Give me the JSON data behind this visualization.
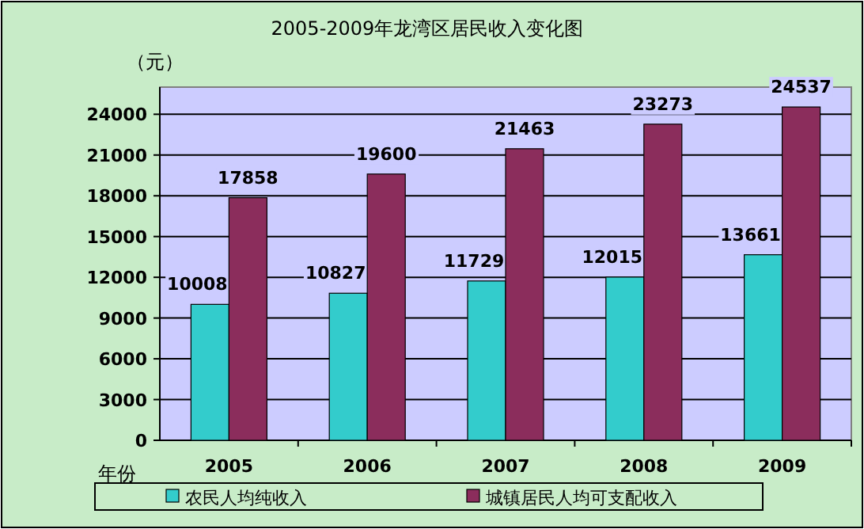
{
  "chart_data": {
    "type": "bar",
    "title": "2005-2009年龙湾区居民收入变化图",
    "ylabel": "（元）",
    "xlabel": "年份",
    "categories": [
      "2005",
      "2006",
      "2007",
      "2008",
      "2009"
    ],
    "series": [
      {
        "name": "农民人均纯收入",
        "color": "#33cccc",
        "values": [
          10008,
          10827,
          11729,
          12015,
          13661
        ]
      },
      {
        "name": "城镇居民人均可支配收入",
        "color": "#8b2d5c",
        "values": [
          17858,
          19600,
          21463,
          23273,
          24537
        ]
      }
    ],
    "ylim": [
      0,
      26000
    ],
    "yticks": [
      0,
      3000,
      6000,
      9000,
      12000,
      15000,
      18000,
      21000,
      24000
    ],
    "grid": "y",
    "legend": "bottom",
    "data_labels": true
  }
}
